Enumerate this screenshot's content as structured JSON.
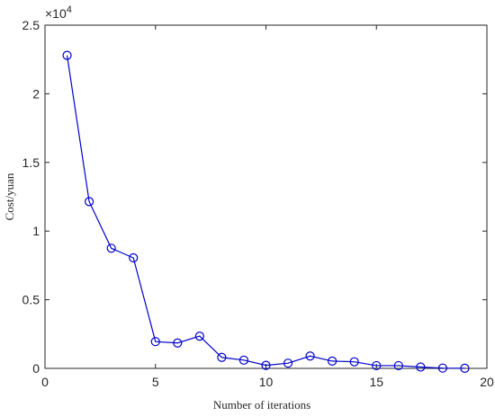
{
  "chart_data": {
    "type": "line",
    "xlabel": "Number of iterations",
    "ylabel": "Cost/yuan",
    "xlim": [
      0,
      20
    ],
    "ylim": [
      0,
      25000
    ],
    "x_ticks": [
      0,
      5,
      10,
      15,
      20
    ],
    "x_tick_labels": [
      "0",
      "5",
      "10",
      "15",
      "20"
    ],
    "y_ticks": [
      0,
      5000,
      10000,
      15000,
      20000,
      25000
    ],
    "y_tick_labels": [
      "0",
      "0.5",
      "1",
      "1.5",
      "2",
      "2.5"
    ],
    "y_multiplier": {
      "base": "×10",
      "exponent": "4"
    },
    "grid": false,
    "colors": {
      "series": "#0000cc",
      "axis": "#262626"
    },
    "series": [
      {
        "marker": "circle",
        "x": [
          1,
          2,
          3,
          4,
          5,
          6,
          7,
          8,
          9,
          10,
          11,
          12,
          13,
          14,
          15,
          16,
          17,
          18,
          19
        ],
        "values": [
          22800,
          12150,
          8750,
          8050,
          1950,
          1850,
          2350,
          800,
          600,
          220,
          380,
          900,
          530,
          480,
          200,
          200,
          100,
          20,
          10
        ]
      }
    ]
  }
}
